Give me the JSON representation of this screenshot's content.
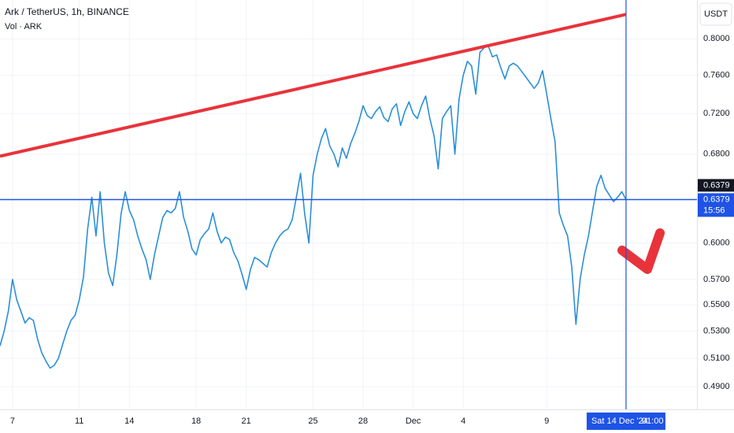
{
  "chart_data": {
    "type": "line",
    "title": "Ark / TetherUS, 1h, BINANCE",
    "subtitle": "Vol · ARK",
    "currency": "USDT",
    "log_scale": true,
    "grid": true,
    "series": [
      {
        "color": "#2a8fd8",
        "values": [
          0.519,
          0.53,
          0.545,
          0.57,
          0.554,
          0.545,
          0.536,
          0.54,
          0.538,
          0.524,
          0.514,
          0.508,
          0.503,
          0.505,
          0.51,
          0.52,
          0.53,
          0.538,
          0.542,
          0.554,
          0.572,
          0.612,
          0.64,
          0.606,
          0.645,
          0.6,
          0.575,
          0.565,
          0.59,
          0.625,
          0.645,
          0.628,
          0.62,
          0.606,
          0.595,
          0.586,
          0.57,
          0.59,
          0.606,
          0.622,
          0.628,
          0.626,
          0.63,
          0.645,
          0.622,
          0.61,
          0.595,
          0.59,
          0.603,
          0.608,
          0.612,
          0.626,
          0.61,
          0.6,
          0.605,
          0.603,
          0.592,
          0.585,
          0.574,
          0.562,
          0.578,
          0.588,
          0.586,
          0.583,
          0.58,
          0.592,
          0.6,
          0.606,
          0.61,
          0.612,
          0.62,
          0.64,
          0.662,
          0.625,
          0.6,
          0.66,
          0.68,
          0.695,
          0.705,
          0.688,
          0.68,
          0.668,
          0.686,
          0.676,
          0.69,
          0.7,
          0.712,
          0.728,
          0.718,
          0.715,
          0.722,
          0.727,
          0.716,
          0.712,
          0.725,
          0.73,
          0.708,
          0.722,
          0.732,
          0.72,
          0.715,
          0.728,
          0.738,
          0.715,
          0.698,
          0.666,
          0.715,
          0.722,
          0.728,
          0.68,
          0.735,
          0.76,
          0.775,
          0.77,
          0.74,
          0.785,
          0.79,
          0.792,
          0.78,
          0.782,
          0.768,
          0.756,
          0.77,
          0.773,
          0.77,
          0.764,
          0.758,
          0.752,
          0.746,
          0.752,
          0.765,
          0.74,
          0.715,
          0.692,
          0.626,
          0.615,
          0.606,
          0.58,
          0.535,
          0.57,
          0.59,
          0.606,
          0.628,
          0.65,
          0.66,
          0.648,
          0.642,
          0.636,
          0.64,
          0.645,
          0.6379
        ]
      }
    ],
    "xlim": [
      0,
      167
    ],
    "xticks": [
      {
        "value": 3,
        "label": "7"
      },
      {
        "value": 19,
        "label": "11"
      },
      {
        "value": 31,
        "label": "14"
      },
      {
        "value": 47,
        "label": "18"
      },
      {
        "value": 59,
        "label": "21"
      },
      {
        "value": 75,
        "label": "25"
      },
      {
        "value": 87,
        "label": "28"
      },
      {
        "value": 99,
        "label": "Dec"
      },
      {
        "value": 111,
        "label": "4"
      },
      {
        "value": 131,
        "label": "9"
      }
    ],
    "ylim": [
      0.4746,
      0.845
    ],
    "yticks": [
      {
        "value": 0.8,
        "label": "0.8000"
      },
      {
        "value": 0.76,
        "label": "0.7600"
      },
      {
        "value": 0.72,
        "label": "0.7200"
      },
      {
        "value": 0.68,
        "label": "0.6800"
      },
      {
        "value": 0.6,
        "label": "0.6000"
      },
      {
        "value": 0.57,
        "label": "0.5700"
      },
      {
        "value": 0.55,
        "label": "0.5500"
      },
      {
        "value": 0.53,
        "label": "0.5300"
      },
      {
        "value": 0.51,
        "label": "0.5100"
      },
      {
        "value": 0.49,
        "label": "0.4900"
      }
    ],
    "trend_line": {
      "color": "#e8333b",
      "x": [
        0,
        150
      ],
      "values": [
        0.678,
        0.828
      ]
    },
    "price_line": {
      "value": 0.6379,
      "color": "#1e53e5",
      "countdown": "15:56"
    },
    "crosshair_price": 0.6379,
    "cursor": {
      "x": 150,
      "date_label": "Sat 14 Dec '24",
      "time_label": "01:00"
    }
  }
}
